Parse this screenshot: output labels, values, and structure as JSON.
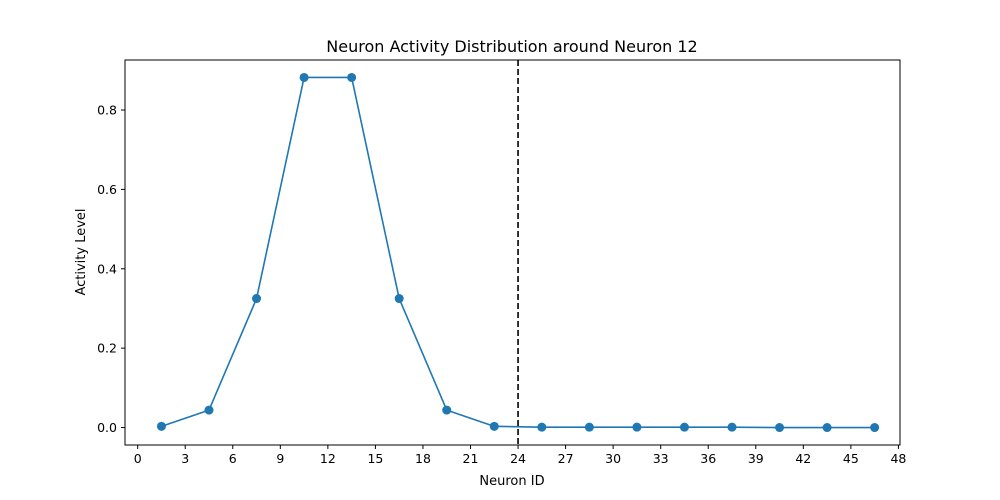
{
  "chart_data": {
    "type": "line",
    "title": "Neuron Activity Distribution around Neuron 12",
    "xlabel": "Neuron ID",
    "ylabel": "Activity Level",
    "xlim": [
      -0.8,
      48.1
    ],
    "ylim": [
      -0.044,
      0.926
    ],
    "xticks": [
      0,
      3,
      6,
      9,
      12,
      15,
      18,
      21,
      24,
      27,
      30,
      33,
      36,
      39,
      42,
      45,
      48
    ],
    "yticks": [
      0.0,
      0.2,
      0.4,
      0.6,
      0.8
    ],
    "ytick_labels": [
      "0.0",
      "0.2",
      "0.4",
      "0.6",
      "0.8"
    ],
    "grid": false,
    "vline": {
      "x": 24,
      "style": "dashed",
      "color": "#000000"
    },
    "series": [
      {
        "color": "#1f77b4",
        "marker": "circle",
        "x": [
          1.5,
          4.5,
          7.5,
          10.5,
          13.5,
          16.5,
          19.5,
          22.5,
          25.5,
          28.5,
          31.5,
          34.5,
          37.5,
          40.5,
          43.5,
          46.5
        ],
        "y": [
          0.003,
          0.044,
          0.325,
          0.882,
          0.882,
          0.325,
          0.044,
          0.003,
          0.001,
          0.001,
          0.001,
          0.001,
          0.001,
          0.0,
          0.0,
          0.0
        ]
      }
    ]
  }
}
